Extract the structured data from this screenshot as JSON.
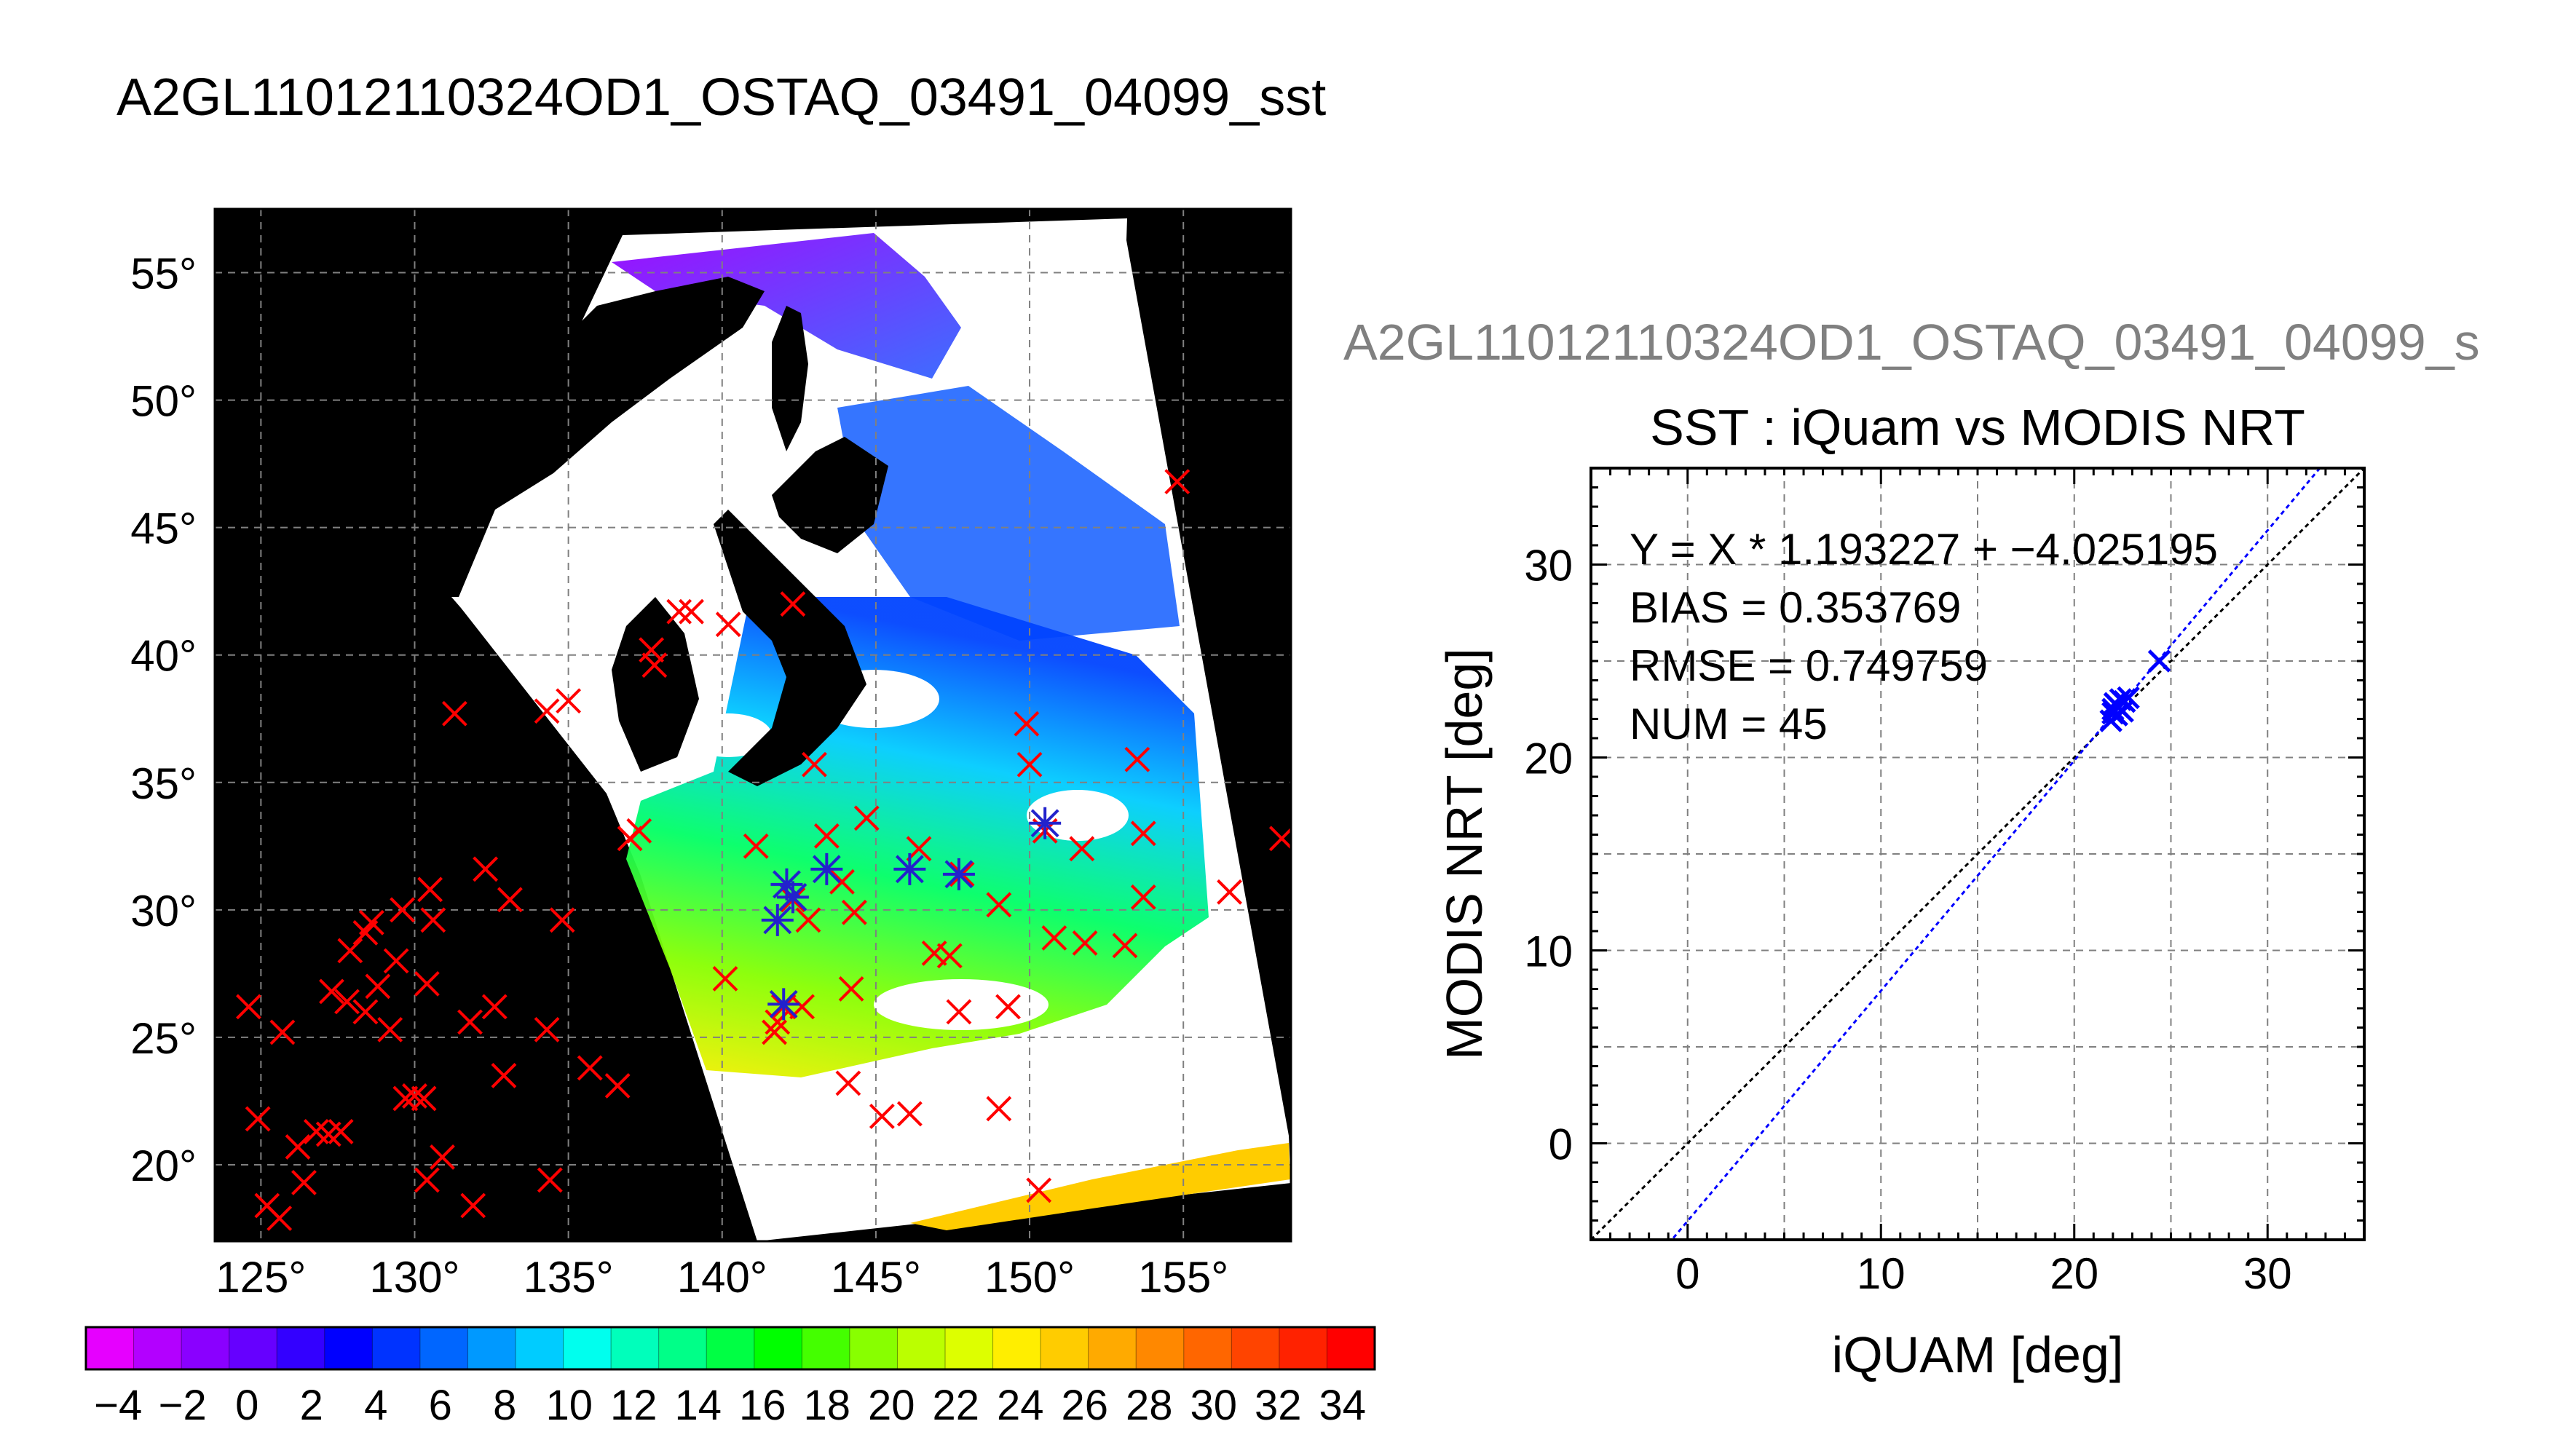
{
  "page": {
    "title": "A2GL11012110324OD1_OSTAQ_03491_04099_sst"
  },
  "map": {
    "lat_ticks": [
      20,
      25,
      30,
      35,
      40,
      45,
      50,
      55
    ],
    "lon_ticks": [
      125,
      130,
      135,
      140,
      145,
      150,
      155
    ],
    "lat_range": [
      17,
      57.5
    ],
    "lon_range": [
      123.5,
      158.5
    ],
    "lat_labels": [
      "20°",
      "25°",
      "30°",
      "35°",
      "40°",
      "45°",
      "50°",
      "55°"
    ],
    "lon_labels": [
      "125°",
      "130°",
      "135°",
      "140°",
      "145°",
      "150°",
      "155°"
    ],
    "red_markers": [
      [
        124.6,
        26.2
      ],
      [
        125.7,
        25.2
      ],
      [
        124.9,
        21.8
      ],
      [
        125.2,
        18.4
      ],
      [
        125.6,
        17.9
      ],
      [
        126.2,
        20.7
      ],
      [
        126.4,
        19.3
      ],
      [
        126.8,
        21.3
      ],
      [
        127.2,
        21.2
      ],
      [
        127.6,
        21.3
      ],
      [
        127.3,
        26.8
      ],
      [
        127.8,
        26.4
      ],
      [
        127.9,
        28.4
      ],
      [
        128.4,
        29.1
      ],
      [
        128.4,
        26.0
      ],
      [
        128.8,
        27.0
      ],
      [
        128.6,
        29.5
      ],
      [
        129.2,
        25.3
      ],
      [
        129.4,
        28.0
      ],
      [
        129.7,
        22.6
      ],
      [
        130.0,
        22.7
      ],
      [
        130.3,
        22.6
      ],
      [
        129.6,
        30.0
      ],
      [
        130.5,
        30.8
      ],
      [
        130.6,
        29.6
      ],
      [
        130.4,
        27.1
      ],
      [
        130.4,
        19.4
      ],
      [
        130.9,
        20.3
      ],
      [
        131.8,
        25.6
      ],
      [
        131.9,
        18.4
      ],
      [
        132.3,
        31.6
      ],
      [
        132.6,
        26.2
      ],
      [
        132.9,
        23.5
      ],
      [
        133.1,
        30.4
      ],
      [
        134.3,
        25.3
      ],
      [
        134.4,
        19.4
      ],
      [
        134.8,
        29.6
      ],
      [
        135.0,
        38.2
      ],
      [
        134.3,
        37.8
      ],
      [
        131.3,
        37.7
      ],
      [
        135.7,
        23.8
      ],
      [
        136.6,
        23.1
      ],
      [
        137.0,
        32.8
      ],
      [
        137.3,
        33.1
      ],
      [
        137.7,
        40.2
      ],
      [
        137.8,
        39.6
      ],
      [
        138.6,
        41.7
      ],
      [
        139.0,
        41.7
      ],
      [
        140.2,
        41.2
      ],
      [
        140.1,
        27.3
      ],
      [
        141.1,
        32.5
      ],
      [
        141.8,
        25.6
      ],
      [
        141.7,
        25.2
      ],
      [
        142.0,
        26.2
      ],
      [
        142.3,
        42.0
      ],
      [
        142.3,
        30.4
      ],
      [
        142.8,
        29.6
      ],
      [
        142.6,
        26.2
      ],
      [
        143.0,
        35.7
      ],
      [
        143.4,
        32.9
      ],
      [
        143.9,
        31.1
      ],
      [
        144.1,
        23.2
      ],
      [
        144.3,
        29.9
      ],
      [
        144.2,
        26.9
      ],
      [
        144.7,
        33.6
      ],
      [
        145.2,
        21.9
      ],
      [
        146.1,
        22.0
      ],
      [
        146.4,
        32.4
      ],
      [
        146.9,
        28.3
      ],
      [
        147.4,
        28.2
      ],
      [
        147.7,
        26.0
      ],
      [
        147.8,
        31.4
      ],
      [
        149.0,
        30.2
      ],
      [
        149.0,
        22.2
      ],
      [
        149.3,
        26.2
      ],
      [
        149.9,
        37.3
      ],
      [
        150.0,
        35.7
      ],
      [
        150.3,
        19.0
      ],
      [
        150.5,
        33.1
      ],
      [
        150.8,
        28.9
      ],
      [
        151.7,
        32.4
      ],
      [
        151.8,
        28.7
      ],
      [
        153.1,
        28.6
      ],
      [
        153.5,
        35.9
      ],
      [
        153.7,
        33.0
      ],
      [
        153.7,
        30.5
      ],
      [
        154.8,
        46.8
      ],
      [
        156.5,
        30.7
      ],
      [
        158.2,
        32.8
      ]
    ],
    "blue_markers": [
      [
        141.8,
        29.6
      ],
      [
        142.1,
        31.0
      ],
      [
        142.3,
        30.5
      ],
      [
        142.0,
        26.3
      ],
      [
        143.4,
        31.6
      ],
      [
        146.1,
        31.6
      ],
      [
        147.7,
        31.4
      ],
      [
        150.5,
        33.4
      ]
    ]
  },
  "colorbar": {
    "labels": [
      "−4",
      "−2",
      "0",
      "2",
      "4",
      "6",
      "8",
      "10",
      "12",
      "14",
      "16",
      "18",
      "20",
      "22",
      "24",
      "26",
      "28",
      "30",
      "32",
      "34"
    ],
    "range": [
      -5,
      35
    ],
    "colors": [
      "#e600ff",
      "#b300ff",
      "#8a00ff",
      "#6600ff",
      "#3300ff",
      "#0000ff",
      "#0033ff",
      "#0066ff",
      "#0099ff",
      "#00ccff",
      "#00ffee",
      "#00ffbb",
      "#00ff88",
      "#00ff44",
      "#00ff00",
      "#44ff00",
      "#88ff00",
      "#bbff00",
      "#ddff00",
      "#ffee00",
      "#ffcc00",
      "#ffaa00",
      "#ff8800",
      "#ff6600",
      "#ff4400",
      "#ff2200",
      "#ff0000"
    ]
  },
  "scatter_subtitle": "A2GL11012110324OD1_OSTAQ_03491_04099_s",
  "chart_data": {
    "type": "scatter",
    "title": "SST : iQuam vs MODIS NRT",
    "xlabel": "iQUAM [deg]",
    "ylabel": "MODIS NRT [deg]",
    "xlim": [
      -5,
      35
    ],
    "ylim": [
      -5,
      35
    ],
    "xticks": [
      0,
      10,
      20,
      30
    ],
    "yticks": [
      0,
      10,
      20,
      30
    ],
    "grid": true,
    "annotations": [
      "Y = X * 1.193227 + −4.025195",
      "BIAS = 0.353769",
      "RMSE = 0.749759",
      "NUM = 45"
    ],
    "fit": {
      "slope": 1.193227,
      "intercept": -4.025195
    },
    "points": [
      [
        21.9,
        21.9
      ],
      [
        22.0,
        22.5
      ],
      [
        22.1,
        22.8
      ],
      [
        22.2,
        22.2
      ],
      [
        22.3,
        22.6
      ],
      [
        22.4,
        23.0
      ],
      [
        22.5,
        22.4
      ],
      [
        22.6,
        22.9
      ],
      [
        22.8,
        23.1
      ],
      [
        22.2,
        22.7
      ],
      [
        22.0,
        22.3
      ],
      [
        24.4,
        25.0
      ]
    ]
  }
}
